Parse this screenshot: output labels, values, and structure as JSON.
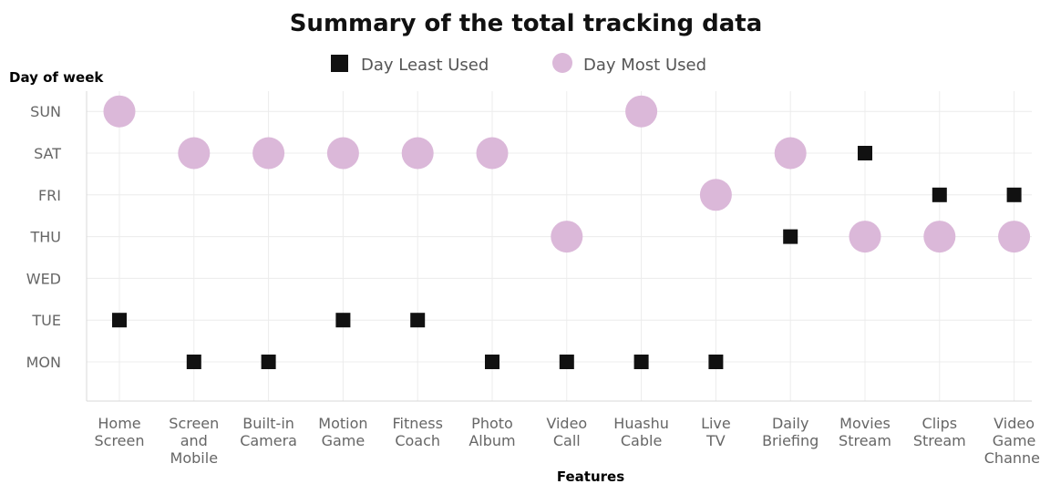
{
  "chart_data": {
    "type": "scatter",
    "title": "Summary of the total tracking data",
    "xlabel": "Features",
    "ylabel": "Day of week",
    "categories": [
      "Home Screen",
      "Screen and Mobile",
      "Built-in Camera",
      "Motion Game",
      "Fitness Coach",
      "Photo Album",
      "Video Call",
      "Huashu Cable",
      "Live TV",
      "Daily Briefing",
      "Movies Stream",
      "Clips Stream",
      "Video Game Channel"
    ],
    "category_lines": [
      [
        "Home",
        "Screen"
      ],
      [
        "Screen",
        "and",
        "Mobile"
      ],
      [
        "Built-in",
        "Camera"
      ],
      [
        "Motion",
        "Game"
      ],
      [
        "Fitness",
        "Coach"
      ],
      [
        "Photo",
        "Album"
      ],
      [
        "Video",
        "Call"
      ],
      [
        "Huashu",
        "Cable"
      ],
      [
        "Live",
        "TV"
      ],
      [
        "Daily",
        "Briefing"
      ],
      [
        "Movies",
        "Stream"
      ],
      [
        "Clips",
        "Stream"
      ],
      [
        "Video",
        "Game",
        "Channel"
      ]
    ],
    "y_categories": [
      "MON",
      "TUE",
      "WED",
      "THU",
      "FRI",
      "SAT",
      "SUN"
    ],
    "series": [
      {
        "name": "Day Least Used",
        "marker": "square",
        "color": "#111111",
        "values": [
          "TUE",
          "MON",
          "MON",
          "TUE",
          "TUE",
          "MON",
          "MON",
          "MON",
          "MON",
          "THU",
          "SAT",
          "FRI",
          "FRI"
        ]
      },
      {
        "name": "Day Most Used",
        "marker": "circle",
        "color": "#dbb8d9",
        "values": [
          "SUN",
          "SAT",
          "SAT",
          "SAT",
          "SAT",
          "SAT",
          "THU",
          "SUN",
          "FRI",
          "SAT",
          "THU",
          "THU",
          "THU"
        ]
      }
    ],
    "legend_position": "top-center",
    "grid": true
  }
}
